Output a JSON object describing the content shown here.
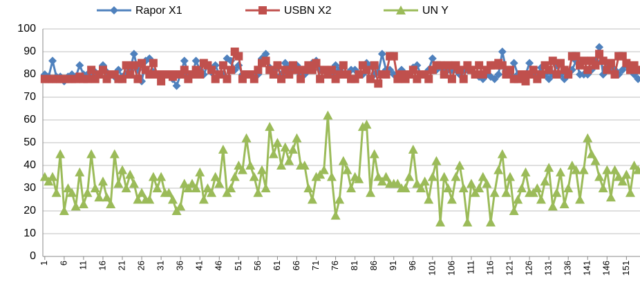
{
  "chart_data": {
    "type": "line",
    "categories": [
      "1",
      null,
      null,
      null,
      null,
      "6",
      null,
      null,
      null,
      null,
      "11",
      null,
      null,
      null,
      null,
      "16",
      null,
      null,
      null,
      null,
      "21",
      null,
      null,
      null,
      null,
      "26",
      null,
      null,
      null,
      null,
      "31",
      null,
      null,
      null,
      null,
      "36",
      null,
      null,
      null,
      null,
      "41",
      null,
      null,
      null,
      null,
      "46",
      null,
      null,
      null,
      null,
      "51",
      null,
      null,
      null,
      null,
      "56",
      null,
      null,
      null,
      null,
      "61",
      null,
      null,
      null,
      null,
      "66",
      null,
      null,
      null,
      null,
      "71",
      null,
      null,
      null,
      null,
      "76",
      null,
      null,
      null,
      null,
      "81",
      null,
      null,
      null,
      null,
      "86",
      null,
      null,
      null,
      null,
      "91",
      null,
      null,
      null,
      null,
      "96",
      null,
      null,
      null,
      null,
      "101",
      null,
      null,
      null,
      null,
      "106",
      null,
      null,
      null,
      null,
      "111",
      null,
      null,
      null,
      null,
      "116",
      null,
      null,
      null,
      null,
      "121",
      null,
      null,
      null,
      null,
      "126",
      null,
      null,
      null,
      null,
      "131",
      null,
      null,
      null,
      null,
      "136",
      null,
      null,
      null,
      null,
      "141",
      null,
      null,
      null,
      null,
      "146",
      null,
      null,
      null,
      null,
      "151",
      null,
      null,
      null
    ],
    "series": [
      {
        "name": "Rapor X1",
        "color": "#4f81bd",
        "marker": "diamond",
        "values": [
          80,
          79,
          86,
          79,
          79,
          77,
          79,
          80,
          79,
          84,
          80,
          80,
          79,
          81,
          80,
          84,
          81,
          80,
          79,
          82,
          79,
          80,
          82,
          89,
          82,
          77,
          86,
          87,
          81,
          80,
          79,
          80,
          80,
          78,
          75,
          80,
          86,
          80,
          80,
          86,
          82,
          80,
          84,
          81,
          84,
          80,
          80,
          87,
          86,
          82,
          84,
          80,
          80,
          80,
          78,
          80,
          87,
          89,
          83,
          82,
          83,
          80,
          85,
          83,
          82,
          84,
          80,
          80,
          82,
          85,
          86,
          82,
          82,
          80,
          80,
          84,
          82,
          80,
          80,
          82,
          82,
          80,
          80,
          85,
          84,
          80,
          81,
          89,
          82,
          82,
          80,
          80,
          82,
          80,
          80,
          83,
          84,
          80,
          80,
          82,
          87,
          82,
          84,
          82,
          82,
          82,
          82,
          80,
          82,
          82,
          82,
          80,
          79,
          78,
          80,
          79,
          78,
          80,
          90,
          82,
          80,
          85,
          80,
          78,
          80,
          85,
          80,
          80,
          83,
          80,
          78,
          80,
          84,
          80,
          78,
          80,
          82,
          86,
          80,
          80,
          80,
          82,
          86,
          92,
          80,
          85,
          82,
          82,
          80,
          82,
          84,
          82,
          80,
          78
        ]
      },
      {
        "name": "USBN X2",
        "color": "#c0504d",
        "marker": "square",
        "values": [
          78,
          78,
          78,
          78,
          78,
          78,
          78,
          78,
          78,
          79,
          78,
          78,
          82,
          78,
          80,
          82,
          78,
          80,
          80,
          78,
          78,
          84,
          80,
          84,
          78,
          85,
          82,
          80,
          85,
          80,
          77,
          80,
          80,
          79,
          80,
          80,
          82,
          78,
          80,
          82,
          80,
          85,
          84,
          82,
          78,
          80,
          84,
          78,
          82,
          90,
          88,
          78,
          80,
          80,
          78,
          82,
          85,
          86,
          82,
          80,
          84,
          78,
          82,
          80,
          84,
          82,
          78,
          82,
          84,
          82,
          85,
          78,
          82,
          80,
          82,
          78,
          80,
          84,
          80,
          78,
          78,
          80,
          84,
          82,
          78,
          84,
          76,
          80,
          80,
          88,
          88,
          78,
          80,
          78,
          80,
          82,
          78,
          80,
          80,
          78,
          82,
          84,
          84,
          80,
          84,
          78,
          84,
          82,
          78,
          84,
          82,
          80,
          84,
          80,
          82,
          84,
          84,
          85,
          84,
          80,
          82,
          78,
          78,
          80,
          77,
          80,
          82,
          78,
          80,
          84,
          82,
          86,
          80,
          85,
          82,
          80,
          88,
          88,
          84,
          86,
          82,
          86,
          84,
          89,
          86,
          82,
          85,
          80,
          88,
          88,
          85,
          82,
          84,
          82
        ]
      },
      {
        "name": "UN Y",
        "color": "#9bbb59",
        "marker": "triangle",
        "values": [
          35,
          33,
          35,
          28,
          45,
          20,
          30,
          28,
          22,
          37,
          23,
          28,
          45,
          30,
          26,
          33,
          26,
          23,
          45,
          32,
          38,
          30,
          36,
          32,
          25,
          28,
          25,
          25,
          35,
          30,
          35,
          28,
          28,
          25,
          20,
          22,
          32,
          30,
          32,
          30,
          37,
          25,
          30,
          28,
          35,
          32,
          47,
          28,
          30,
          35,
          40,
          38,
          52,
          40,
          35,
          28,
          38,
          30,
          57,
          45,
          50,
          40,
          48,
          42,
          47,
          52,
          40,
          40,
          30,
          25,
          35,
          36,
          38,
          62,
          35,
          18,
          25,
          42,
          38,
          30,
          35,
          34,
          57,
          58,
          28,
          45,
          35,
          33,
          35,
          32,
          32,
          32,
          30,
          30,
          35,
          47,
          32,
          30,
          33,
          25,
          35,
          42,
          15,
          35,
          30,
          25,
          35,
          40,
          30,
          15,
          32,
          28,
          30,
          35,
          32,
          15,
          28,
          38,
          45,
          28,
          35,
          20,
          25,
          30,
          37,
          28,
          28,
          30,
          25,
          33,
          39,
          22,
          28,
          37,
          23,
          30,
          40,
          38,
          25,
          38,
          52,
          45,
          42,
          35,
          30,
          38,
          26,
          38,
          35,
          33,
          36,
          28,
          40,
          38
        ]
      }
    ],
    "ylim": [
      0,
      100
    ],
    "yticks": [
      0,
      10,
      20,
      30,
      40,
      50,
      60,
      70,
      80,
      90,
      100
    ],
    "grid": true,
    "legend": "top"
  }
}
